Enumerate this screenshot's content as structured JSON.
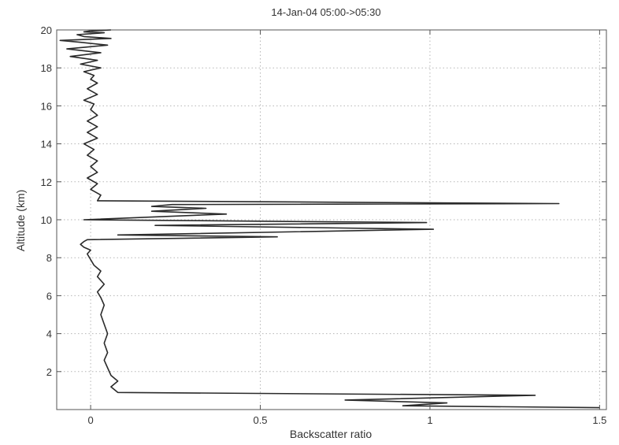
{
  "chart_data": {
    "type": "line",
    "title": "14-Jan-04 05:00->05:30",
    "xlabel": "Backscatter ratio",
    "ylabel": "Altitude (km)",
    "xlim": [
      -0.1,
      1.52
    ],
    "ylim": [
      0,
      20
    ],
    "xticks": [
      0,
      0.5,
      1,
      1.5
    ],
    "xtick_labels": [
      "0",
      "0.5",
      "1",
      "1.5"
    ],
    "yticks": [
      2,
      4,
      6,
      8,
      10,
      12,
      14,
      16,
      18,
      20
    ],
    "ytick_labels": [
      "2",
      "4",
      "6",
      "8",
      "10",
      "12",
      "14",
      "16",
      "18",
      "20"
    ],
    "grid": true,
    "line_color": "#2a2a2a",
    "series": [
      {
        "x": [
          1.5,
          0.92,
          1.05,
          0.75,
          1.31,
          0.08,
          0.06,
          0.08,
          0.06,
          0.05,
          0.04,
          0.05,
          0.04,
          0.05,
          0.04,
          0.03,
          0.04,
          0.03,
          0.02,
          0.04,
          0.02,
          0.03,
          0.01,
          0.0,
          -0.01,
          0.0,
          -0.02,
          -0.03,
          -0.02,
          -0.01,
          0.55,
          0.08,
          1.01,
          0.19,
          0.99,
          -0.02,
          0.4,
          0.18,
          0.34,
          0.18,
          0.24,
          1.38,
          0.02,
          0.03,
          0.0,
          0.02,
          -0.01,
          0.02,
          0.0,
          0.02,
          -0.01,
          0.01,
          -0.02,
          0.02,
          -0.01,
          0.02,
          -0.01,
          0.02,
          0.0,
          0.01,
          -0.02,
          0.02,
          -0.01,
          0.02,
          0.0,
          0.01,
          -0.02,
          0.03,
          -0.03,
          0.02,
          -0.06,
          0.03,
          -0.07,
          -0.01,
          0.05,
          -0.03,
          -0.09,
          0.06,
          -0.02,
          -0.04,
          0.04,
          -0.02,
          0.0,
          0.06
        ],
        "y": [
          0.1,
          0.2,
          0.35,
          0.5,
          0.75,
          0.9,
          1.2,
          1.5,
          1.8,
          2.2,
          2.6,
          3.0,
          3.5,
          4.0,
          4.5,
          5.0,
          5.5,
          5.9,
          6.2,
          6.6,
          7.0,
          7.3,
          7.6,
          7.9,
          8.2,
          8.4,
          8.55,
          8.7,
          8.85,
          8.95,
          9.1,
          9.2,
          9.5,
          9.7,
          9.85,
          10.0,
          10.3,
          10.45,
          10.6,
          10.7,
          10.8,
          10.85,
          11.0,
          11.3,
          11.6,
          11.9,
          12.2,
          12.5,
          12.8,
          13.1,
          13.4,
          13.7,
          14.0,
          14.3,
          14.6,
          14.9,
          15.2,
          15.5,
          15.8,
          16.1,
          16.3,
          16.6,
          16.9,
          17.2,
          17.4,
          17.6,
          17.8,
          18.0,
          18.2,
          18.4,
          18.6,
          18.8,
          19.0,
          19.1,
          19.2,
          19.35,
          19.45,
          19.55,
          19.65,
          19.75,
          19.85,
          19.9,
          19.95,
          20.0
        ]
      }
    ],
    "annotations": []
  }
}
